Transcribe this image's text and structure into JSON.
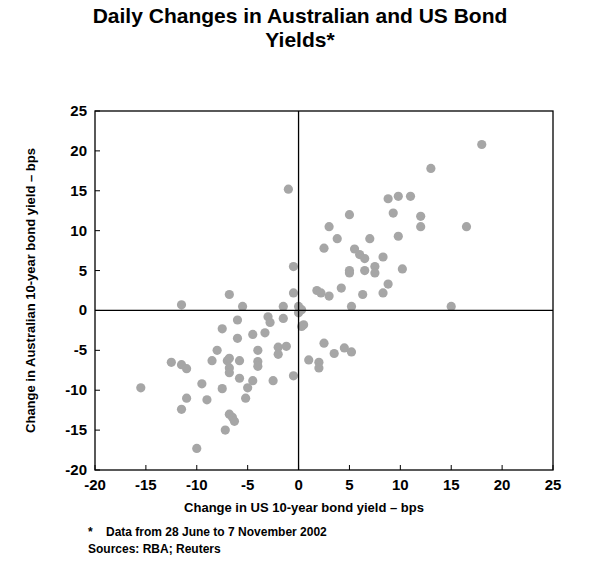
{
  "chart_data": {
    "type": "scatter",
    "title": "Daily Changes in Australian and US Bond Yields*",
    "x_label": "Change in US 10-year bond yield – bps",
    "y_label": "Change in Australian 10-year bond yield – bps",
    "footnote": "*    Data from 28 June to 7 November 2002",
    "sources": "Sources: RBA; Reuters",
    "color": "#a6a6a6",
    "marker": "circle",
    "grid": false,
    "xlim": [
      -20,
      25
    ],
    "ylim": [
      -20,
      25
    ],
    "xticks": [
      -20,
      -15,
      -10,
      -5,
      0,
      5,
      10,
      15,
      20,
      25
    ],
    "yticks": [
      -20,
      -15,
      -10,
      -5,
      0,
      5,
      10,
      15,
      20,
      25
    ],
    "x": [
      -15.5,
      -12.5,
      -11.5,
      -11,
      -11.5,
      -11.5,
      -11,
      -10,
      -9.5,
      -9,
      -8.5,
      -8,
      -7.5,
      -7.5,
      -7.2,
      -7,
      -6.8,
      -6.8,
      -6.8,
      -6.8,
      -6.8,
      -6.5,
      -6.3,
      -6,
      -6,
      -5.8,
      -5.8,
      -5.5,
      -5.2,
      -5,
      -4.5,
      -4.5,
      -4,
      -4,
      -4,
      -3.3,
      -3,
      -2.8,
      -2.5,
      -2,
      -2,
      -1.5,
      -1.5,
      -1.2,
      -1,
      -0.5,
      -0.5,
      -0.5,
      0,
      0,
      0.3,
      0.5,
      0.3,
      1,
      1.8,
      2,
      2,
      2.2,
      2.5,
      2.5,
      3,
      3,
      3.5,
      3.8,
      4.2,
      4.5,
      5,
      5,
      5,
      5.2,
      5.2,
      5.5,
      6,
      6.3,
      6.5,
      6.5,
      7,
      7.5,
      7.5,
      8.3,
      8.3,
      8.8,
      8.8,
      9.3,
      9.8,
      9.8,
      10.2,
      11,
      12,
      12,
      13,
      15,
      16.5,
      18
    ],
    "values": [
      -9.7,
      -6.5,
      -6.8,
      -7.3,
      0.7,
      -12.4,
      -11,
      -17.3,
      -9.2,
      -11.2,
      -6.3,
      -5,
      -2.3,
      -9.8,
      -15,
      -6.3,
      -6,
      -7.2,
      -7.8,
      2,
      -13,
      -13.4,
      -13.9,
      -1.2,
      -3.5,
      -6.3,
      -8.5,
      0.5,
      -11,
      -9.7,
      -3,
      -8.8,
      -5,
      -6.4,
      -7,
      -2.8,
      -0.8,
      -1.5,
      -8.8,
      -4.6,
      -5.5,
      0.5,
      -1,
      -4.5,
      15.2,
      5.5,
      2.2,
      -8.2,
      0.5,
      -0.3,
      0.1,
      -1.8,
      -2,
      -6.2,
      2.5,
      -6.5,
      -7.2,
      2.2,
      -4.1,
      7.8,
      1.8,
      10.5,
      -5.4,
      9,
      2.8,
      -4.7,
      5,
      12,
      4.7,
      0.5,
      -5.2,
      7.7,
      7,
      2,
      6.5,
      5,
      9,
      5.5,
      4.7,
      6.7,
      2.2,
      3.3,
      14,
      12.2,
      14.3,
      9.3,
      5.2,
      14.3,
      11.8,
      10.5,
      17.8,
      0.5,
      10.5,
      20.8
    ]
  }
}
